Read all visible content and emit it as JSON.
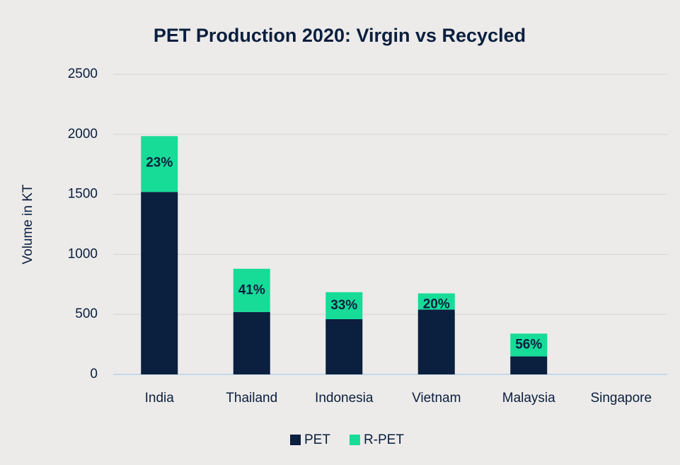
{
  "chart_data": {
    "type": "stacked_bar",
    "title": "PET Production 2020: Virgin vs Recycled",
    "y_label": "Volume in KT",
    "categories": [
      "India",
      "Thailand",
      "Indonesia",
      "Vietnam",
      "Malaysia",
      "Singapore"
    ],
    "series": [
      {
        "name": "PET",
        "color": "#0b1f3e",
        "values": [
          1520,
          520,
          460,
          540,
          150,
          0
        ]
      },
      {
        "name": "R-PET",
        "color": "#16dc98",
        "values": [
          465,
          360,
          225,
          135,
          190,
          0
        ]
      }
    ],
    "annotations": [
      {
        "category": "India",
        "text": "23%"
      },
      {
        "category": "Thailand",
        "text": "41%"
      },
      {
        "category": "Indonesia",
        "text": "33%"
      },
      {
        "category": "Vietnam",
        "text": "20%"
      },
      {
        "category": "Malaysia",
        "text": "56%"
      }
    ],
    "ylim": [
      0,
      2500
    ],
    "yticks": [
      0,
      500,
      1000,
      1500,
      2000,
      2500
    ],
    "grid": true,
    "legend": "bottom"
  }
}
